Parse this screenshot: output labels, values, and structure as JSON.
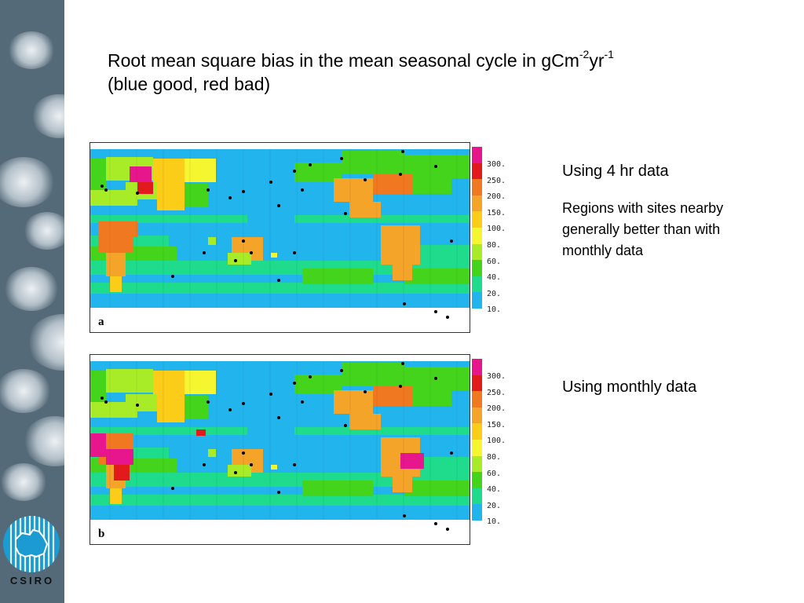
{
  "title": {
    "line1_prefix": "Root mean square bias in the mean seasonal cycle in gCm",
    "sup1": "-2",
    "mid": "yr",
    "sup2": "-1",
    "line2": "(blue good, red bad)"
  },
  "legend": {
    "colors": [
      "#e8168c",
      "#e31a1c",
      "#f07820",
      "#f5a42a",
      "#fbcc18",
      "#f5f530",
      "#a8ec28",
      "#44d41c",
      "#1edc8c",
      "#22b4ec"
    ],
    "labels": [
      "300.",
      "250.",
      "200.",
      "150.",
      "100.",
      "80.",
      "60.",
      "40.",
      "20.",
      "10."
    ]
  },
  "maps": [
    {
      "letter": "a",
      "caption": "Using 4 hr data",
      "note": "Regions with sites nearby generally better than with monthly data"
    },
    {
      "letter": "b",
      "caption": "Using monthly data"
    }
  ],
  "logo": {
    "text": "CSIRO",
    "icon": "csiro-logo-icon"
  }
}
